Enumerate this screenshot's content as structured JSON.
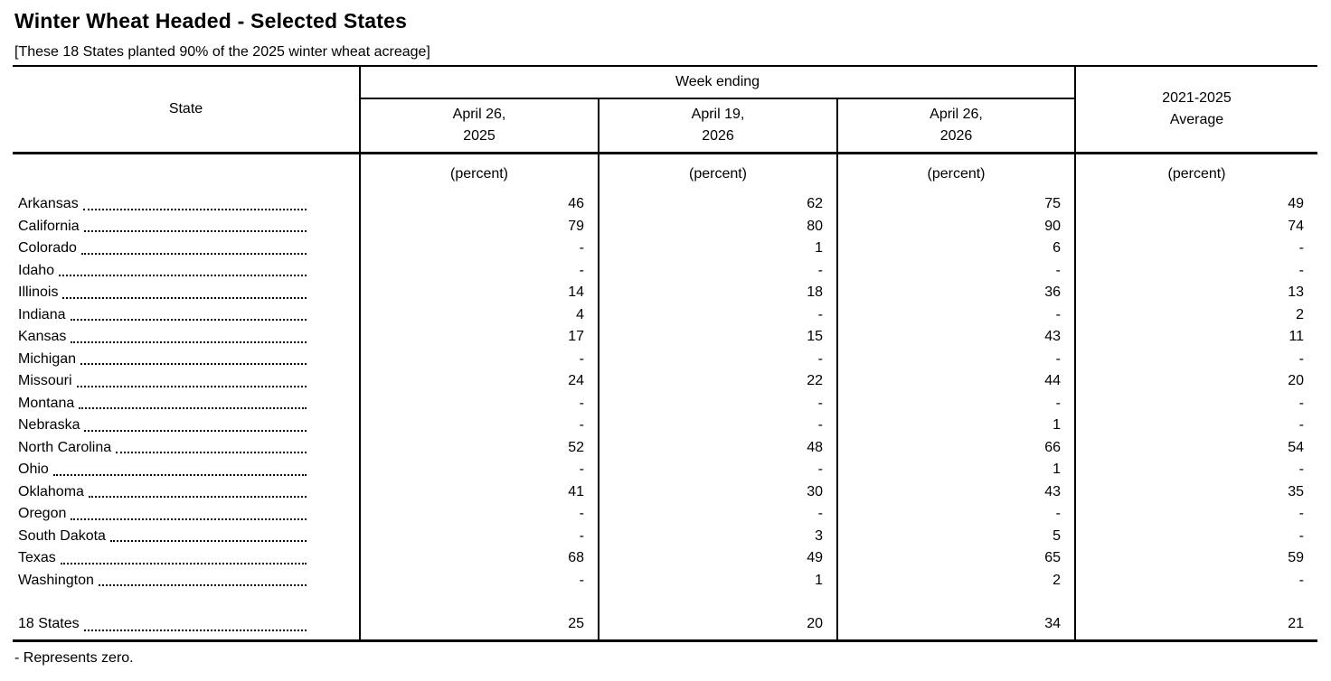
{
  "page": {
    "title": "Winter Wheat Headed - Selected States",
    "subtitle": "[These 18 States planted 90% of the 2025 winter wheat acreage]",
    "footnote": "- Represents zero."
  },
  "table": {
    "state_header": "State",
    "group_header": "Week ending",
    "unit_label": "(percent)",
    "week_columns": [
      {
        "line1": "April 26,",
        "line2": "2025"
      },
      {
        "line1": "April 19,",
        "line2": "2026"
      },
      {
        "line1": "April 26,",
        "line2": "2026"
      }
    ],
    "avg_column": {
      "line1": "2021-2025",
      "line2": "Average"
    },
    "rows": [
      {
        "state": "Arkansas",
        "values": [
          "46",
          "62",
          "75",
          "49"
        ]
      },
      {
        "state": "California",
        "values": [
          "79",
          "80",
          "90",
          "74"
        ]
      },
      {
        "state": "Colorado",
        "values": [
          "-",
          "1",
          "6",
          "-"
        ]
      },
      {
        "state": "Idaho",
        "values": [
          "-",
          "-",
          "-",
          "-"
        ]
      },
      {
        "state": "Illinois",
        "values": [
          "14",
          "18",
          "36",
          "13"
        ]
      },
      {
        "state": "Indiana",
        "values": [
          "4",
          "-",
          "-",
          "2"
        ]
      },
      {
        "state": "Kansas",
        "values": [
          "17",
          "15",
          "43",
          "11"
        ]
      },
      {
        "state": "Michigan",
        "values": [
          "-",
          "-",
          "-",
          "-"
        ]
      },
      {
        "state": "Missouri",
        "values": [
          "24",
          "22",
          "44",
          "20"
        ]
      },
      {
        "state": "Montana",
        "values": [
          "-",
          "-",
          "-",
          "-"
        ]
      },
      {
        "state": "Nebraska",
        "values": [
          "-",
          "-",
          "1",
          "-"
        ]
      },
      {
        "state": "North Carolina",
        "values": [
          "52",
          "48",
          "66",
          "54"
        ]
      },
      {
        "state": "Ohio",
        "values": [
          "-",
          "-",
          "1",
          "-"
        ]
      },
      {
        "state": "Oklahoma",
        "values": [
          "41",
          "30",
          "43",
          "35"
        ]
      },
      {
        "state": "Oregon",
        "values": [
          "-",
          "-",
          "-",
          "-"
        ]
      },
      {
        "state": "South Dakota",
        "values": [
          "-",
          "3",
          "5",
          "-"
        ]
      },
      {
        "state": "Texas",
        "values": [
          "68",
          "49",
          "65",
          "59"
        ]
      },
      {
        "state": "Washington",
        "values": [
          "-",
          "1",
          "2",
          "-"
        ]
      }
    ],
    "total_row": {
      "state": "18 States",
      "values": [
        "25",
        "20",
        "34",
        "21"
      ]
    }
  }
}
